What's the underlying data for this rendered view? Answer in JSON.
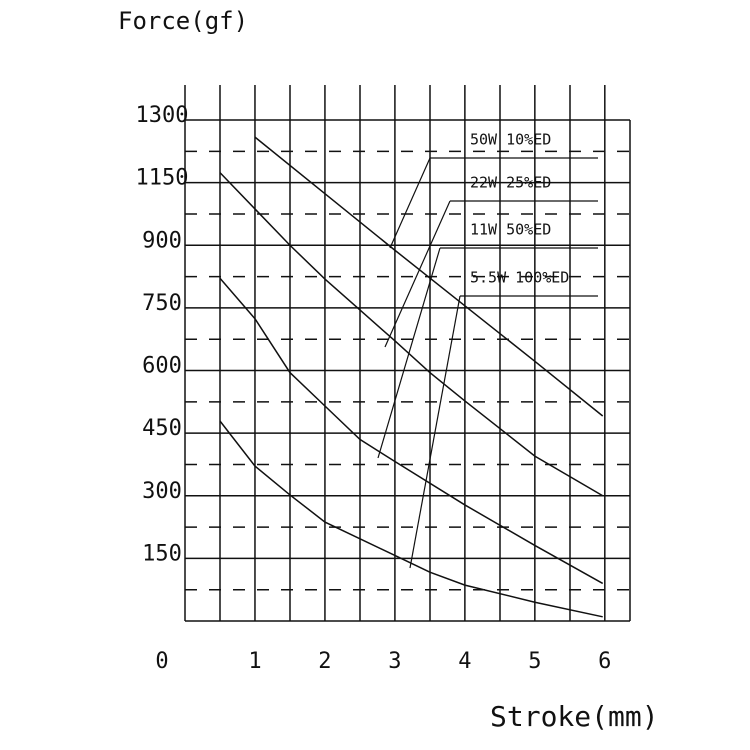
{
  "chart_data": {
    "type": "line",
    "title": "Force(gf)",
    "x_label": "Stroke(mm)",
    "xlim": [
      0,
      6.36
    ],
    "xticks": [
      1,
      2,
      3,
      4,
      5,
      6
    ],
    "ylim": [
      0,
      1300
    ],
    "yticks": [
      0,
      150,
      300,
      450,
      600,
      750,
      900,
      1150,
      1300
    ],
    "grid": true,
    "series": [
      {
        "name": "50W 10%ED",
        "color": "#111111",
        "x": [
          1,
          2,
          3,
          4,
          5,
          5.97
        ],
        "values": [
          1259,
          1106,
          888,
          755,
          622,
          491
        ]
      },
      {
        "name": "22W 25%ED",
        "color": "#111111",
        "x": [
          0.5,
          1,
          1.5,
          2,
          2.5,
          3,
          3.5,
          4,
          5,
          5.97
        ],
        "values": [
          1174,
          1045,
          900,
          819,
          745,
          671,
          595,
          527,
          395,
          300
        ]
      },
      {
        "name": "11W  50%ED",
        "color": "#111111",
        "x": [
          0.5,
          1,
          1.5,
          2,
          2.5,
          3,
          4,
          5,
          5.97
        ],
        "values": [
          821,
          724,
          595,
          515,
          435,
          382,
          278,
          181,
          90
        ]
      },
      {
        "name": "5.5W 100%ED",
        "color": "#111111",
        "x": [
          0.5,
          1,
          1.5,
          2,
          3,
          3.5,
          4,
          5,
          5.97
        ],
        "values": [
          479,
          371,
          302,
          237,
          157,
          117,
          86,
          45,
          10
        ]
      }
    ]
  }
}
